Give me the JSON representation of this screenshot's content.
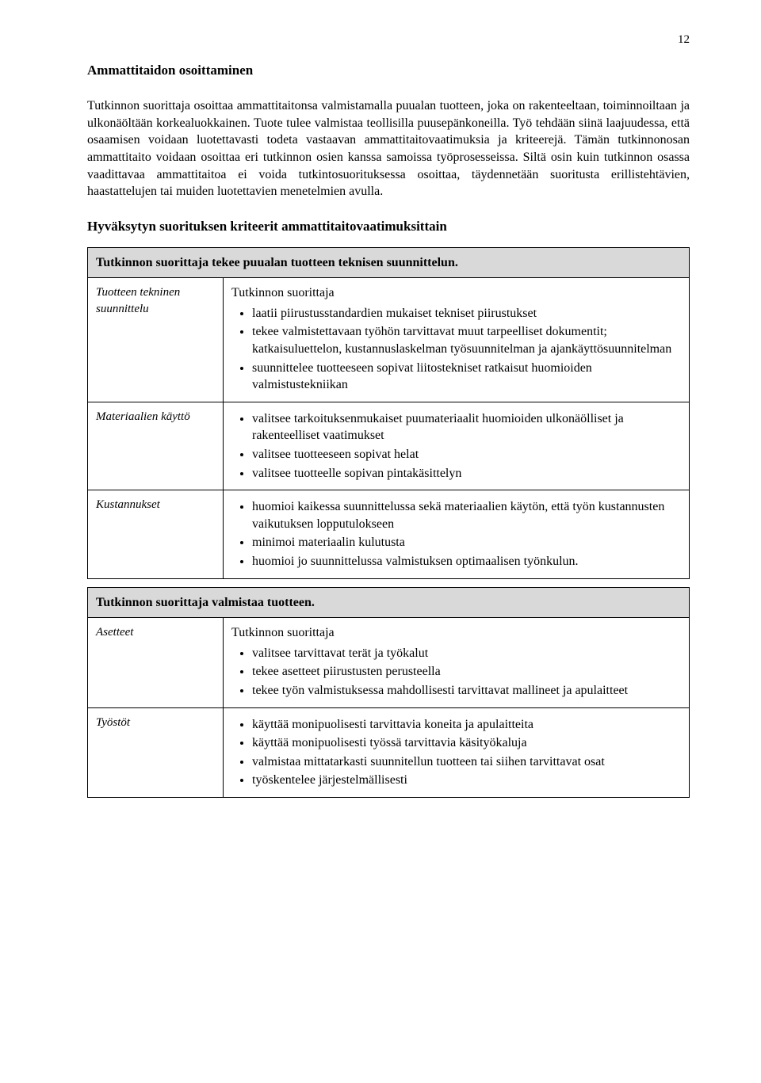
{
  "page_number": "12",
  "heading": "Ammattitaidon osoittaminen",
  "paragraph": "Tutkinnon suorittaja osoittaa ammattitaitonsa valmistamalla puualan tuotteen, joka on rakenteeltaan, toiminnoiltaan ja ulkonäöltään korkealuokkainen. Tuote tulee valmistaa teollisilla puusepänkoneilla. Työ tehdään siinä laajuudessa, että osaamisen voidaan luotettavasti todeta vastaavan ammattitaitovaatimuksia ja kriteerejä. Tämän tutkinnonosan  ammattitaito voidaan osoittaa eri tutkinnon osien kanssa samoissa työprosesseissa. Siltä osin kuin tutkinnon osassa vaadittavaa ammattitaitoa ei voida tutkintosuorituksessa osoittaa, täydennetään suoritusta erillistehtävien, haastattelujen tai muiden luotettavien menetelmien avulla.",
  "subheading": "Hyväksytyn suorituksen kriteerit ammattitaitovaatimuksittain",
  "table1": {
    "header": "Tutkinnon suorittaja tekee puualan tuotteen teknisen suunnittelun.",
    "rows": [
      {
        "left": "Tuotteen tekninen suunnittelu",
        "intro": "Tutkinnon suorittaja",
        "bullets": [
          "laatii piirustusstandardien mukaiset tekniset piirustukset",
          "tekee valmistettavaan työhön tarvittavat muut tarpeelliset dokumentit; katkaisuluettelon, kustannuslaskelman työsuunnitelman ja ajankäyttösuunnitelman",
          "suunnittelee tuotteeseen sopivat liitostekniset ratkaisut huomioiden valmistustekniikan"
        ]
      },
      {
        "left": "Materiaalien käyttö",
        "bullets": [
          "valitsee tarkoituksenmukaiset puumateriaalit huomioiden ulkonäölliset ja rakenteelliset vaatimukset",
          "valitsee tuotteeseen sopivat helat",
          "valitsee tuotteelle sopivan pintakäsittelyn"
        ]
      },
      {
        "left": "Kustannukset",
        "bullets": [
          "huomioi kaikessa suunnittelussa sekä materiaalien käytön, että työn kustannusten vaikutuksen lopputulokseen",
          "minimoi materiaalin kulutusta",
          "huomioi jo suunnittelussa valmistuksen optimaalisen työnkulun."
        ]
      }
    ]
  },
  "table2": {
    "header": "Tutkinnon suorittaja valmistaa tuotteen.",
    "rows": [
      {
        "left": "Asetteet",
        "intro": "Tutkinnon suorittaja",
        "bullets": [
          "valitsee tarvittavat terät ja  työkalut",
          "tekee asetteet piirustusten perusteella",
          "tekee työn valmistuksessa mahdollisesti tarvittavat mallineet ja apulaitteet"
        ]
      },
      {
        "left": "Työstöt",
        "bullets": [
          "käyttää monipuolisesti tarvittavia koneita ja apulaitteita",
          "käyttää monipuolisesti työssä tarvittavia käsityökaluja",
          "valmistaa mittatarkasti suunnitellun tuotteen tai siihen tarvittavat osat",
          "työskentelee järjestelmällisesti"
        ]
      }
    ]
  }
}
